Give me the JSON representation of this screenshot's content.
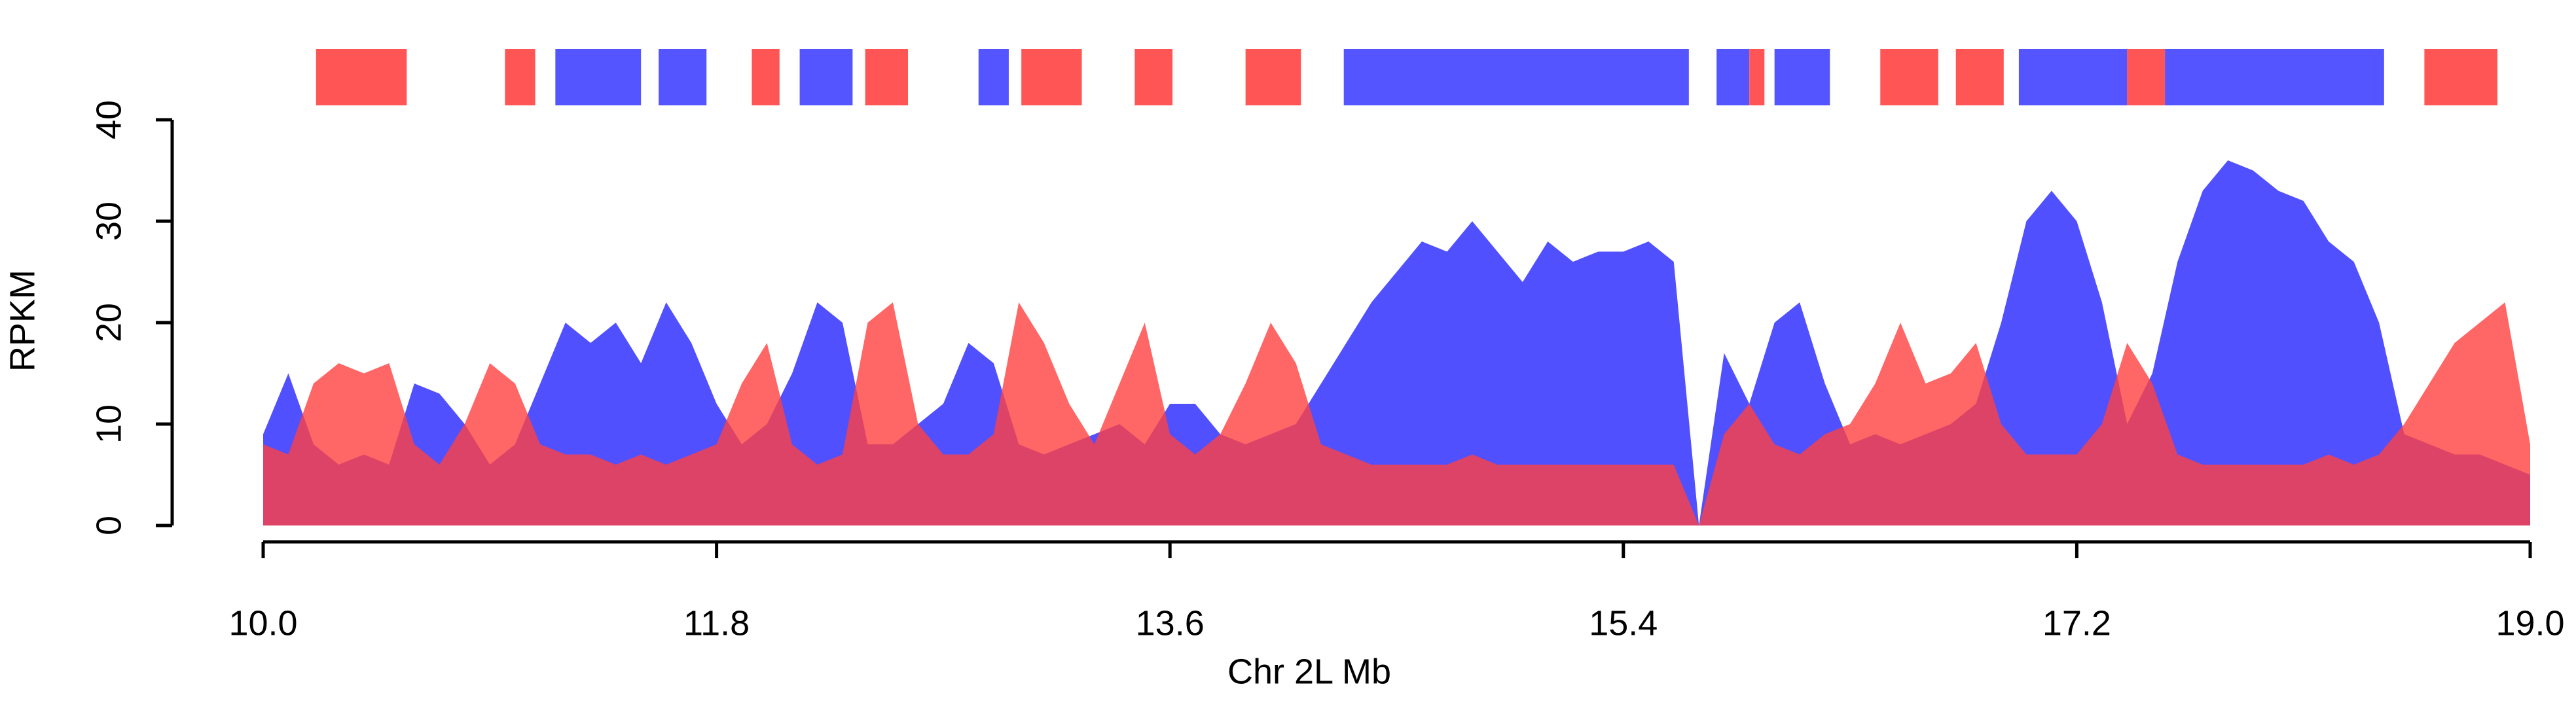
{
  "chart_data": {
    "type": "area",
    "xlabel": "Chr 2L Mb",
    "ylabel": "RPKM",
    "xlim": [
      10.0,
      19.0
    ],
    "ylim": [
      0,
      40
    ],
    "xticks": [
      {
        "value": 10,
        "label": "10.0"
      },
      11.8,
      13.6,
      15.4,
      17.2,
      {
        "value": 19,
        "label": "19.0"
      }
    ],
    "yticks": [
      0,
      10,
      20,
      30,
      40
    ],
    "x": [
      10.0,
      10.1,
      10.2,
      10.3,
      10.4,
      10.5,
      10.6,
      10.7,
      10.8,
      10.9,
      11.0,
      11.1,
      11.2,
      11.3,
      11.4,
      11.5,
      11.6,
      11.7,
      11.8,
      11.9,
      12.0,
      12.1,
      12.2,
      12.3,
      12.4,
      12.5,
      12.6,
      12.7,
      12.8,
      12.9,
      13.0,
      13.1,
      13.2,
      13.3,
      13.4,
      13.5,
      13.6,
      13.7,
      13.8,
      13.9,
      14.0,
      14.1,
      14.2,
      14.3,
      14.4,
      14.5,
      14.6,
      14.7,
      14.8,
      14.9,
      15.0,
      15.1,
      15.2,
      15.3,
      15.4,
      15.5,
      15.6,
      15.7,
      15.8,
      15.9,
      16.0,
      16.1,
      16.2,
      16.3,
      16.4,
      16.5,
      16.6,
      16.7,
      16.8,
      16.9,
      17.0,
      17.1,
      17.2,
      17.3,
      17.4,
      17.5,
      17.6,
      17.7,
      17.8,
      17.9,
      18.0,
      18.1,
      18.2,
      18.3,
      18.4,
      18.5,
      18.6,
      18.7,
      18.8,
      18.9,
      19.0
    ],
    "series": [
      {
        "color": "#5050ff",
        "values": [
          9,
          15,
          8,
          6,
          7,
          6,
          14,
          13,
          10,
          6,
          8,
          14,
          20,
          18,
          20,
          16,
          22,
          18,
          12,
          8,
          10,
          15,
          22,
          20,
          8,
          8,
          10,
          12,
          18,
          16,
          8,
          7,
          8,
          9,
          10,
          8,
          12,
          12,
          9,
          8,
          9,
          10,
          14,
          18,
          22,
          25,
          28,
          27,
          30,
          27,
          24,
          28,
          26,
          27,
          27,
          28,
          26,
          0,
          17,
          12,
          20,
          22,
          14,
          8,
          9,
          8,
          9,
          10,
          12,
          20,
          30,
          33,
          30,
          22,
          10,
          15,
          26,
          33,
          36,
          35,
          33,
          32,
          28,
          26,
          20,
          9,
          8,
          7,
          7,
          6,
          5
        ]
      },
      {
        "color": "#ff4040",
        "values": [
          8,
          7,
          14,
          16,
          15,
          16,
          8,
          6,
          10,
          16,
          14,
          8,
          7,
          7,
          6,
          7,
          6,
          7,
          8,
          14,
          18,
          8,
          6,
          7,
          20,
          22,
          10,
          7,
          7,
          9,
          22,
          18,
          12,
          8,
          14,
          20,
          9,
          7,
          9,
          14,
          20,
          16,
          8,
          7,
          6,
          6,
          6,
          6,
          7,
          6,
          6,
          6,
          6,
          6,
          6,
          6,
          6,
          0,
          9,
          12,
          8,
          7,
          9,
          10,
          14,
          20,
          14,
          15,
          18,
          10,
          7,
          7,
          7,
          10,
          18,
          14,
          7,
          6,
          6,
          6,
          6,
          6,
          7,
          6,
          7,
          10,
          14,
          18,
          20,
          22,
          8
        ]
      }
    ],
    "domains": [
      {
        "start": 10.21,
        "end": 10.57,
        "color": "#ff5555"
      },
      {
        "start": 10.96,
        "end": 11.08,
        "color": "#ff5555"
      },
      {
        "start": 11.16,
        "end": 11.5,
        "color": "#5555ff"
      },
      {
        "start": 11.57,
        "end": 11.76,
        "color": "#5555ff"
      },
      {
        "start": 11.94,
        "end": 12.05,
        "color": "#ff5555"
      },
      {
        "start": 12.13,
        "end": 12.34,
        "color": "#5555ff"
      },
      {
        "start": 12.39,
        "end": 12.56,
        "color": "#ff5555"
      },
      {
        "start": 12.84,
        "end": 12.96,
        "color": "#5555ff"
      },
      {
        "start": 13.01,
        "end": 13.25,
        "color": "#ff5555"
      },
      {
        "start": 13.46,
        "end": 13.61,
        "color": "#ff5555"
      },
      {
        "start": 13.9,
        "end": 14.12,
        "color": "#ff5555"
      },
      {
        "start": 14.29,
        "end": 15.66,
        "color": "#5555ff"
      },
      {
        "start": 15.77,
        "end": 15.9,
        "color": "#5555ff"
      },
      {
        "start": 15.9,
        "end": 15.96,
        "color": "#ff5555"
      },
      {
        "start": 16.0,
        "end": 16.22,
        "color": "#5555ff"
      },
      {
        "start": 16.42,
        "end": 16.65,
        "color": "#ff5555"
      },
      {
        "start": 16.72,
        "end": 16.91,
        "color": "#ff5555"
      },
      {
        "start": 16.97,
        "end": 17.4,
        "color": "#5555ff"
      },
      {
        "start": 17.4,
        "end": 17.55,
        "color": "#ff5555"
      },
      {
        "start": 17.55,
        "end": 18.42,
        "color": "#5555ff"
      },
      {
        "start": 18.58,
        "end": 18.87,
        "color": "#ff5555"
      }
    ]
  }
}
